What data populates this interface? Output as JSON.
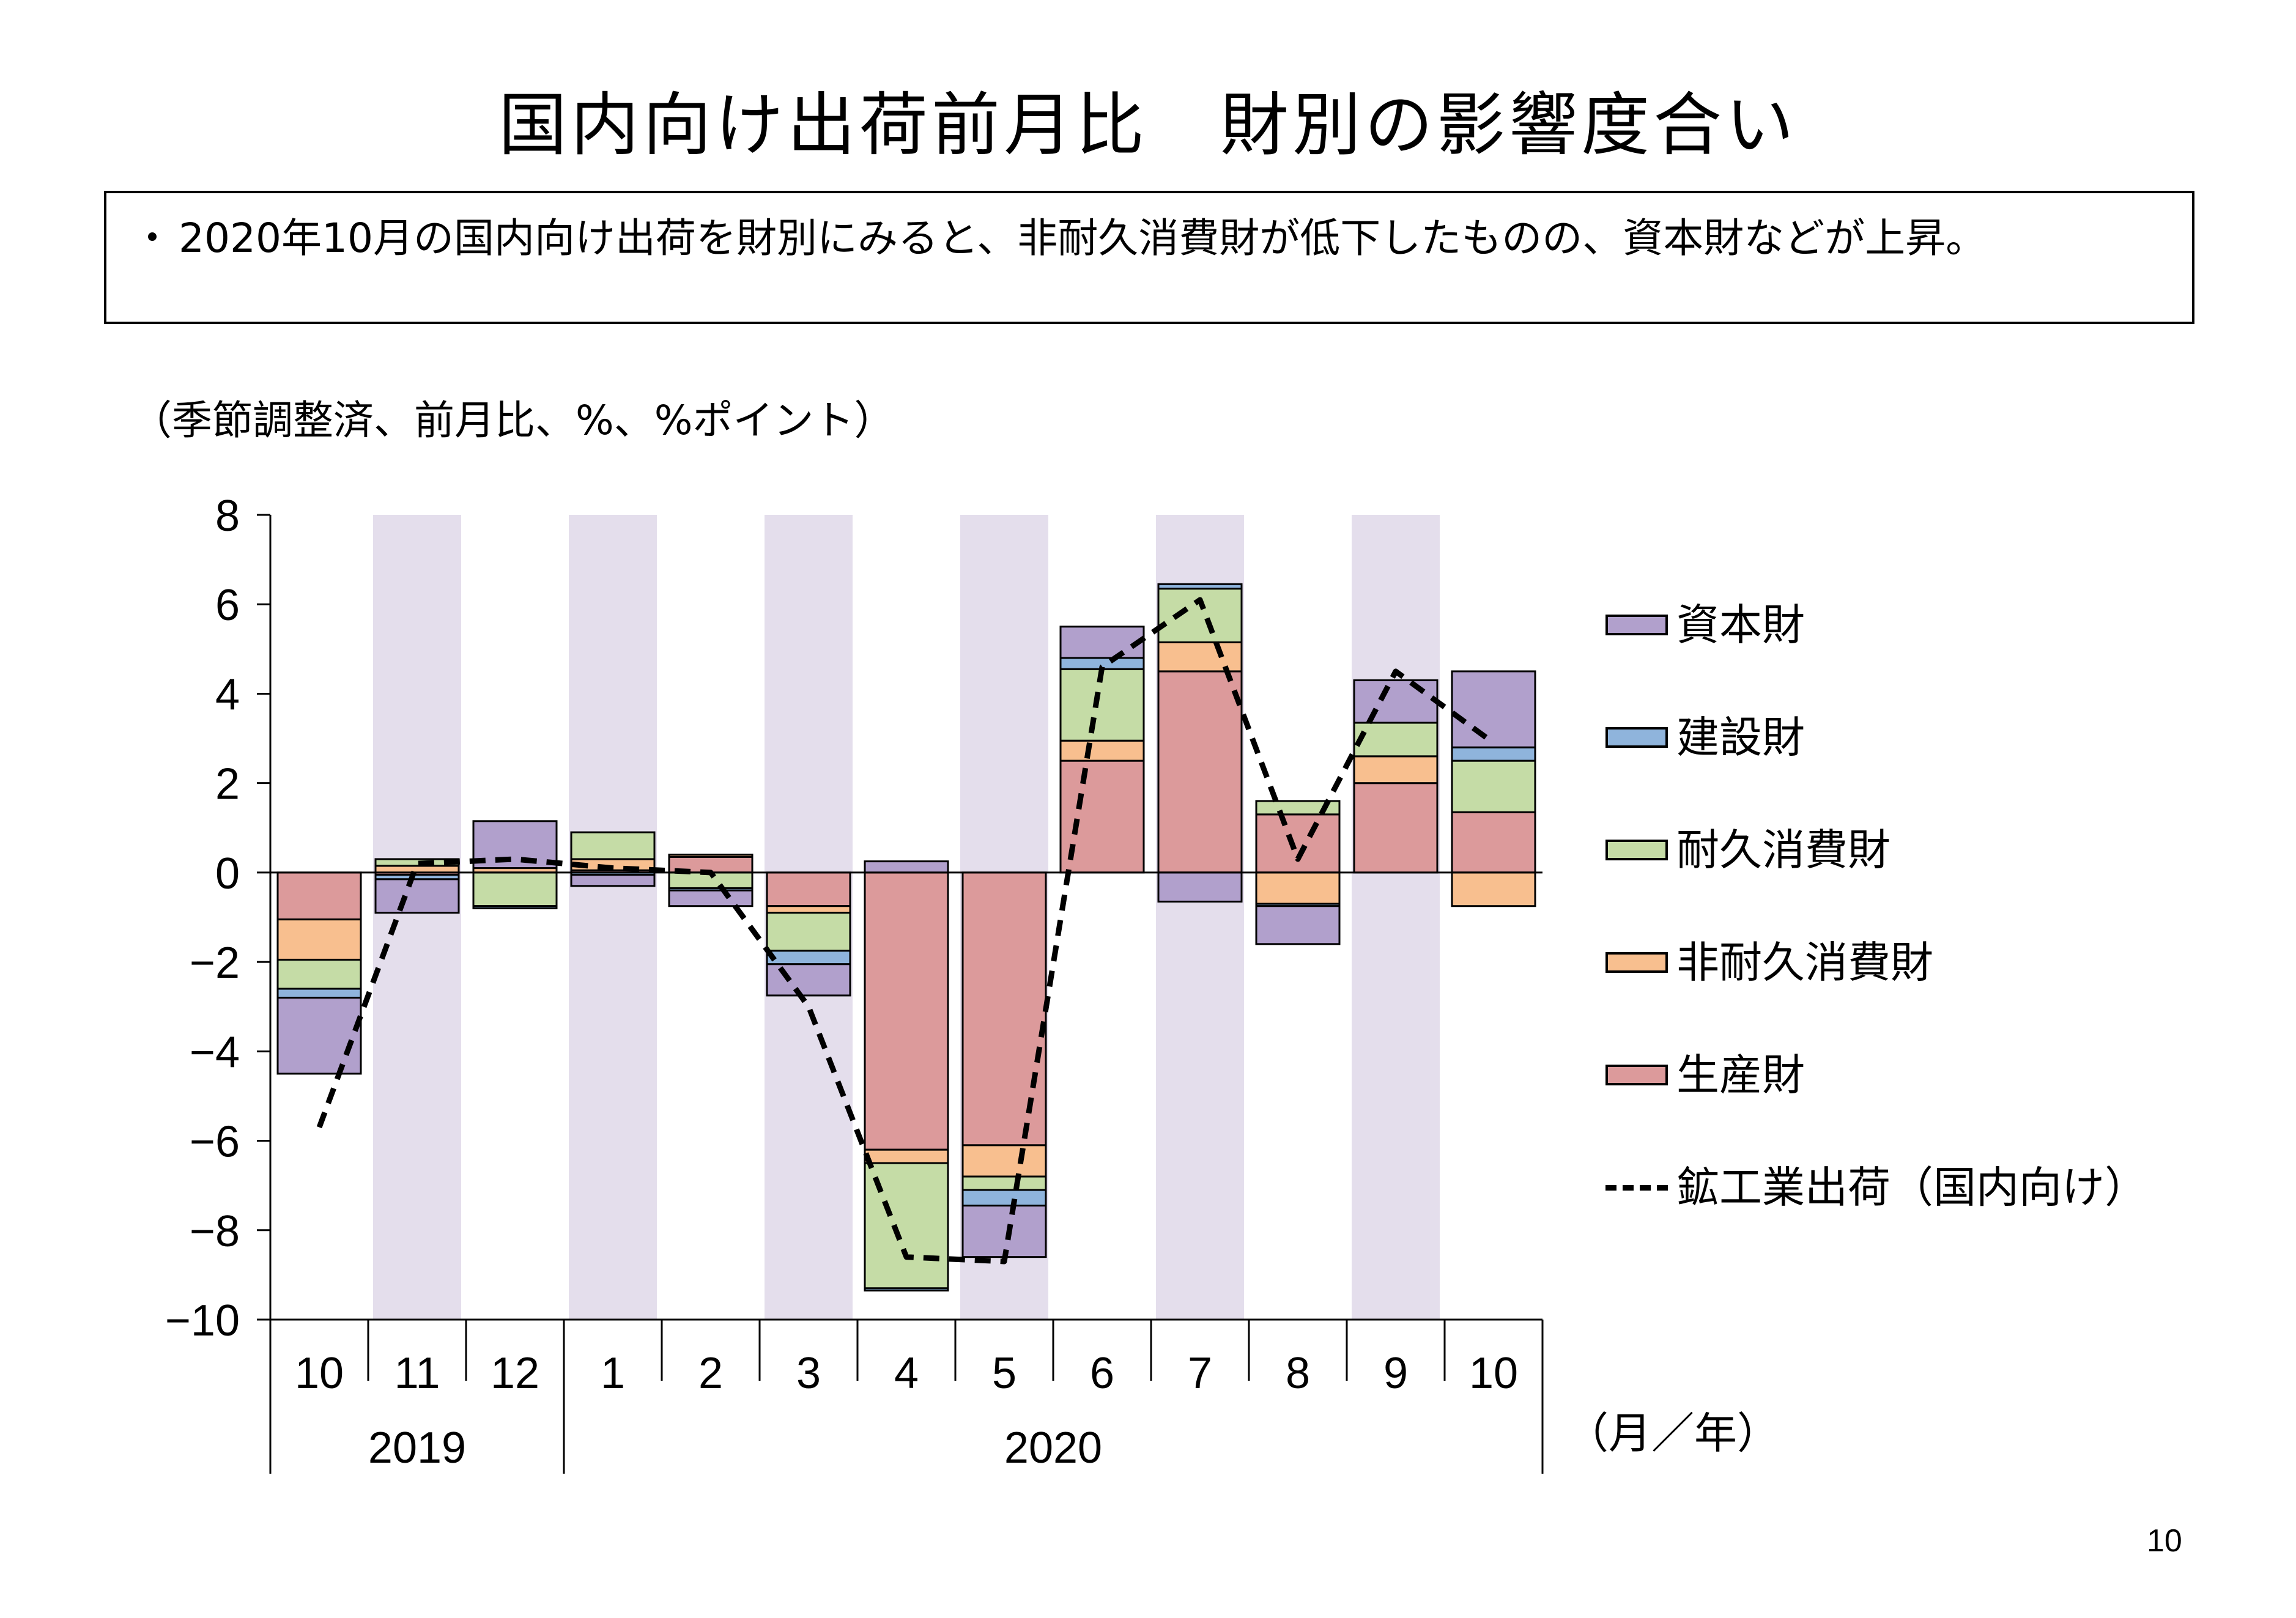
{
  "title": "国内向け出荷前月比　財別の影響度合い",
  "summary": {
    "bullet": "・",
    "text": "2020年10月の国内向け出荷を財別にみると、非耐久消費財が低下したものの、資本財などが上昇。"
  },
  "unit_note": "（季節調整済、前月比、%、%ポイント）",
  "axis_unit_label": "（月／年）",
  "page_number": "10",
  "colors": {
    "capital_goods": "#b1a0cc",
    "construction_goods": "#8fb4dc",
    "durable_consumer_goods": "#c5dca6",
    "nondurable_consumer_goods": "#f8bf8f",
    "producer_goods": "#dc9a9b",
    "shading": "#e4deec",
    "line": "#000000"
  },
  "chart_data": {
    "type": "bar",
    "stacked": true,
    "categories": [
      "10",
      "11",
      "12",
      "1",
      "2",
      "3",
      "4",
      "5",
      "6",
      "7",
      "8",
      "9",
      "10"
    ],
    "year_groups": [
      {
        "label": "2019",
        "span": 3
      },
      {
        "label": "2020",
        "span": 10
      }
    ],
    "ylim": [
      -10,
      8
    ],
    "yticks": [
      8,
      6,
      4,
      2,
      0,
      -2,
      -4,
      -6,
      -8,
      -10
    ],
    "shaded_categories": [
      1,
      3,
      5,
      7,
      9,
      11
    ],
    "series": [
      {
        "name": "生産財",
        "key": "producer_goods",
        "values": [
          -1.05,
          -0.05,
          0.0,
          0.05,
          0.35,
          -0.75,
          -6.2,
          -6.1,
          2.5,
          4.5,
          1.3,
          2.0,
          1.35
        ]
      },
      {
        "name": "非耐久消費財",
        "key": "nondurable_consumer_goods",
        "values": [
          -0.9,
          0.15,
          0.1,
          0.25,
          0.05,
          -0.15,
          -0.3,
          -0.7,
          0.45,
          0.65,
          -0.7,
          0.6,
          -0.75
        ]
      },
      {
        "name": "耐久消費財",
        "key": "durable_consumer_goods",
        "values": [
          -0.65,
          0.15,
          -0.75,
          0.6,
          -0.35,
          -0.85,
          -2.8,
          -0.3,
          1.6,
          1.2,
          0.3,
          0.75,
          1.15
        ]
      },
      {
        "name": "建設財",
        "key": "construction_goods",
        "values": [
          -0.2,
          -0.1,
          -0.05,
          -0.05,
          -0.05,
          -0.3,
          -0.05,
          -0.35,
          0.25,
          0.1,
          -0.05,
          0.0,
          0.3
        ]
      },
      {
        "name": "資本財",
        "key": "capital_goods",
        "values": [
          -1.7,
          -0.75,
          1.05,
          -0.25,
          -0.35,
          -0.7,
          0.25,
          -1.15,
          0.7,
          -0.65,
          -0.85,
          0.95,
          1.7
        ]
      }
    ],
    "line": {
      "name": "鉱工業出荷（国内向け）",
      "values": [
        -5.7,
        0.2,
        0.3,
        0.1,
        0.0,
        -3.0,
        -8.6,
        -8.7,
        4.6,
        6.1,
        0.3,
        4.5,
        2.9
      ]
    },
    "legend_order": [
      "資本財",
      "建設財",
      "耐久消費財",
      "非耐久消費財",
      "生産財",
      "鉱工業出荷（国内向け）"
    ],
    "legend_position": "right"
  }
}
